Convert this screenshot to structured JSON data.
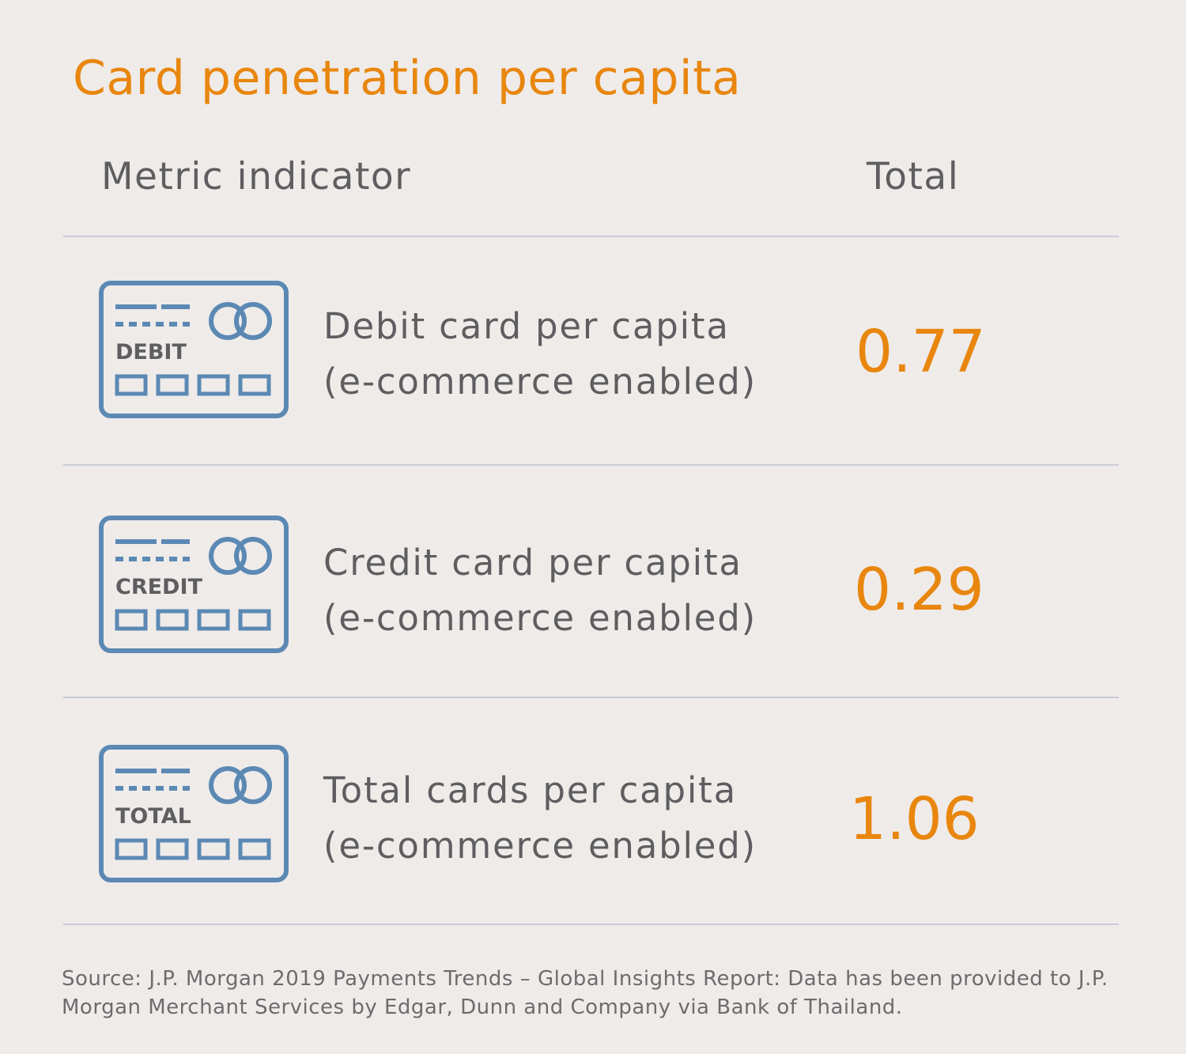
{
  "title": "Card penetration per capita",
  "header": {
    "metric_label": "Metric indicator",
    "total_label": "Total"
  },
  "rows": [
    {
      "icon": "debit-card-icon",
      "card_label": "DEBIT",
      "line1": "Debit card per capita",
      "line2": "(e-commerce enabled)",
      "value": "0.77"
    },
    {
      "icon": "credit-card-icon",
      "card_label": "CREDIT",
      "line1": "Credit card per capita",
      "line2": "(e-commerce enabled)",
      "value": "0.29"
    },
    {
      "icon": "total-card-icon",
      "card_label": "TOTAL",
      "line1": "Total cards per capita",
      "line2": "(e-commerce enabled)",
      "value": "1.06"
    }
  ],
  "source": "Source: J.P. Morgan 2019 Payments Trends – Global Insights Report: Data has been provided to J.P. Morgan Merchant Services by Edgar, Dunn and Company via Bank of Thailand.",
  "colors": {
    "accent": "#e8860e",
    "icon_blue": "#5b89b4",
    "text": "#5e5e60",
    "background": "#efebe9"
  }
}
